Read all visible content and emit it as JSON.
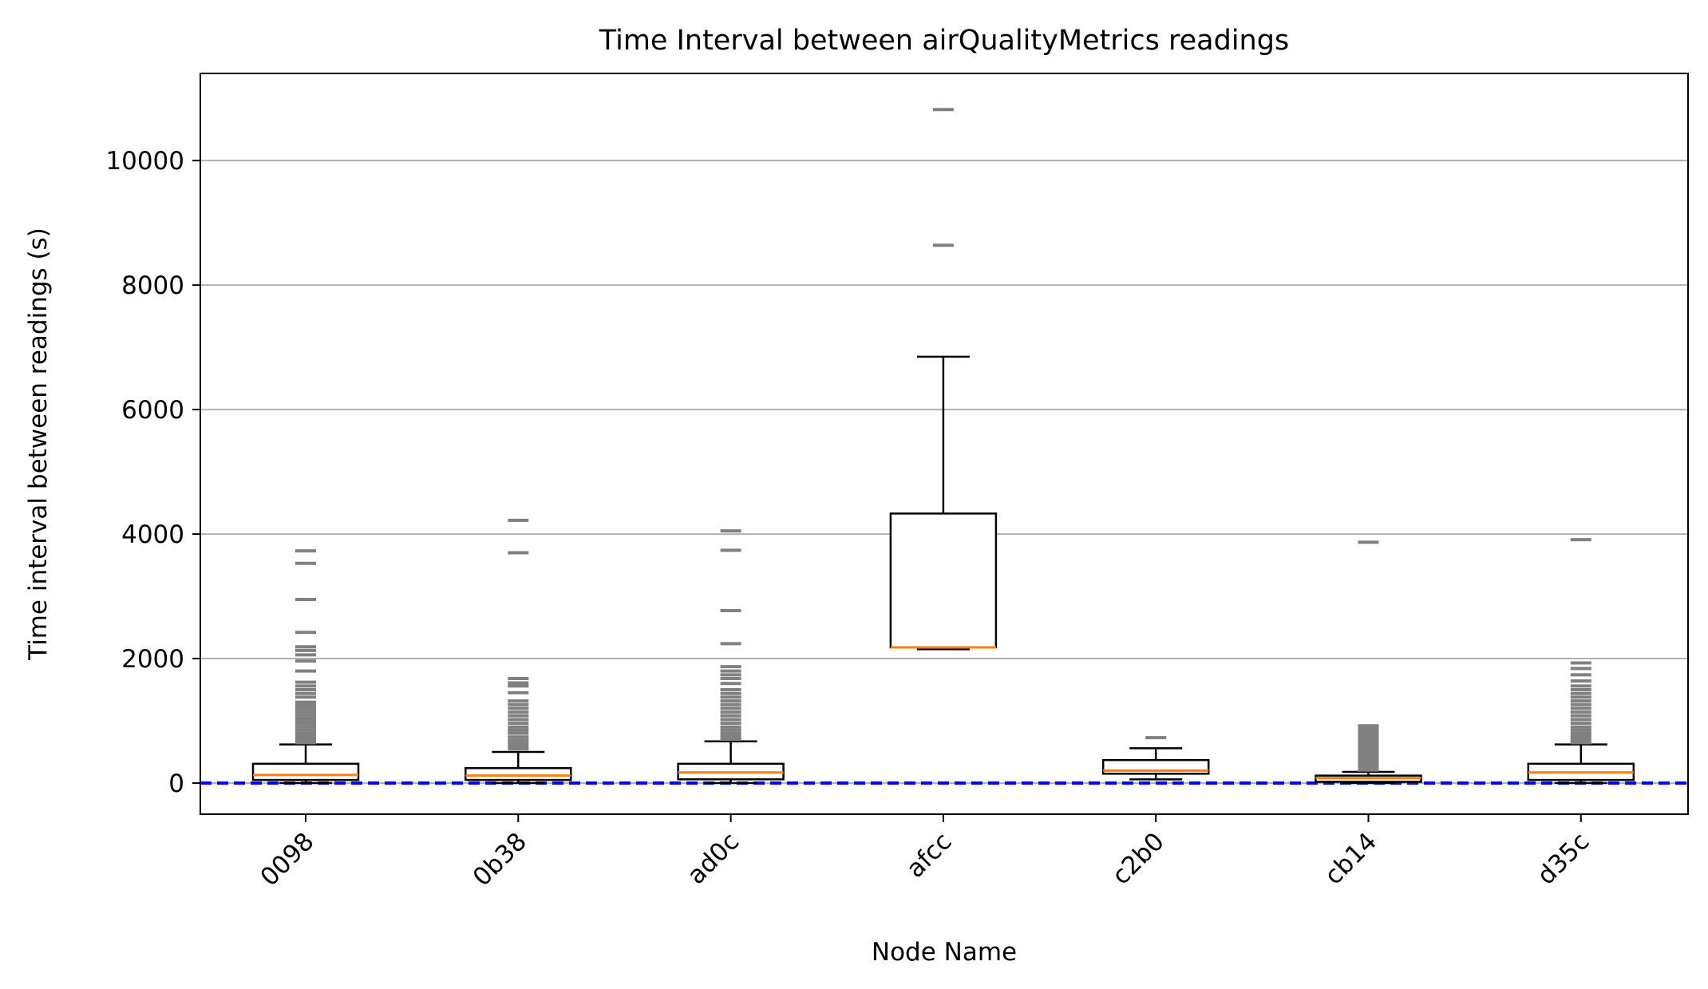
{
  "chart_data": {
    "type": "box",
    "title": "Time Interval between airQualityMetrics readings",
    "xlabel": "Node Name",
    "ylabel": "Time interval between readings (s)",
    "categories": [
      "0098",
      "0b38",
      "ad0c",
      "afcc",
      "c2b0",
      "cb14",
      "d35c"
    ],
    "ylim": [
      -500,
      11400
    ],
    "yticks": [
      0,
      2000,
      4000,
      6000,
      8000,
      10000
    ],
    "ytick_labels": [
      "0",
      "2000",
      "4000",
      "6000",
      "8000",
      "10000"
    ],
    "grid": "horizontal",
    "reference_line": {
      "y": 0,
      "style": "dashed",
      "color": "#0000ff"
    },
    "colors": {
      "box": "#000000",
      "median": "#ff7f0e",
      "outlier": "#808080",
      "grid": "#b0b0b0",
      "reference": "#0000ff"
    },
    "boxes": [
      {
        "name": "0098",
        "whisker_low": 0,
        "q1": 50,
        "median": 130,
        "q3": 310,
        "whisker_high": 620,
        "outliers": [
          3730,
          3530,
          2950,
          2420,
          2190,
          2130,
          2060,
          1960,
          1800,
          1620,
          1560,
          1500,
          1440,
          1380,
          1300,
          1250,
          1200,
          1150,
          1100,
          1050,
          1000,
          950,
          900,
          850,
          800,
          760,
          720,
          680,
          650
        ]
      },
      {
        "name": "0b38",
        "whisker_low": 0,
        "q1": 50,
        "median": 120,
        "q3": 240,
        "whisker_high": 500,
        "outliers": [
          4220,
          3700,
          1680,
          1610,
          1560,
          1450,
          1320,
          1260,
          1200,
          1140,
          1080,
          1020,
          960,
          900,
          850,
          800,
          740,
          690,
          640,
          590,
          550
        ]
      },
      {
        "name": "ad0c",
        "whisker_low": 0,
        "q1": 60,
        "median": 170,
        "q3": 310,
        "whisker_high": 670,
        "outliers": [
          4050,
          3740,
          2770,
          2240,
          1870,
          1800,
          1740,
          1680,
          1600,
          1500,
          1440,
          1380,
          1320,
          1260,
          1200,
          1140,
          1080,
          1020,
          960,
          900,
          850,
          800,
          760,
          720,
          700
        ]
      },
      {
        "name": "afcc",
        "whisker_low": 2150,
        "q1": 2180,
        "median": 2180,
        "q3": 4330,
        "whisker_high": 6850,
        "outliers": [
          10820,
          8640
        ]
      },
      {
        "name": "c2b0",
        "whisker_low": 60,
        "q1": 150,
        "median": 200,
        "q3": 370,
        "whisker_high": 560,
        "outliers": [
          730
        ]
      },
      {
        "name": "cb14",
        "whisker_low": 0,
        "q1": 20,
        "median": 80,
        "q3": 120,
        "whisker_high": 180,
        "outliers": [
          3870,
          920,
          880,
          840,
          800,
          760,
          720,
          680,
          640,
          600,
          560,
          520,
          480,
          440,
          400,
          360,
          320,
          280,
          240,
          210
        ]
      },
      {
        "name": "d35c",
        "whisker_low": 0,
        "q1": 50,
        "median": 170,
        "q3": 310,
        "whisker_high": 620,
        "outliers": [
          3910,
          1930,
          1840,
          1740,
          1640,
          1560,
          1500,
          1440,
          1380,
          1320,
          1260,
          1200,
          1140,
          1080,
          1020,
          960,
          900,
          850,
          800,
          760,
          720,
          680,
          650
        ]
      }
    ]
  }
}
